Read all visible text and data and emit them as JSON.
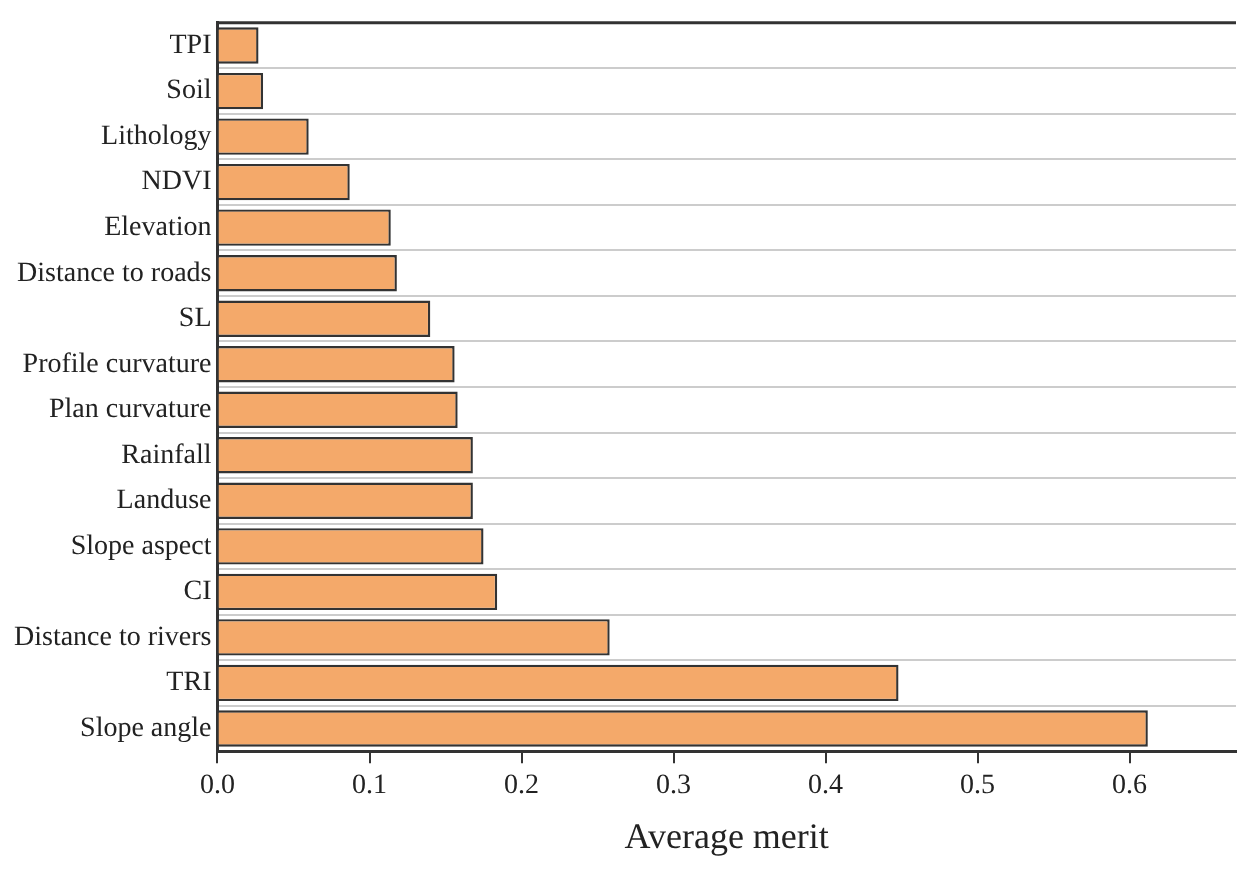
{
  "chart_data": {
    "type": "bar",
    "orientation": "horizontal",
    "xlabel": "Average merit",
    "categories": [
      "TPI",
      "Soil",
      "Lithology",
      "NDVI",
      "Elevation",
      "Distance to roads",
      "SL",
      "Profile curvature",
      "Plan curvature",
      "Rainfall",
      "Landuse",
      "Slope aspect",
      "CI",
      "Distance to rivers",
      "TRI",
      "Slope angle"
    ],
    "values": [
      0.027,
      0.03,
      0.06,
      0.087,
      0.114,
      0.118,
      0.14,
      0.156,
      0.158,
      0.168,
      0.168,
      0.175,
      0.184,
      0.258,
      0.448,
      0.612
    ],
    "color": "#f4a96a",
    "xlim": [
      0,
      0.67
    ],
    "xticks": [
      {
        "value": 0,
        "label": "0.0"
      },
      0.1,
      0.2,
      0.3,
      0.4,
      0.5,
      0.6
    ],
    "grid": "y",
    "legend": false
  }
}
